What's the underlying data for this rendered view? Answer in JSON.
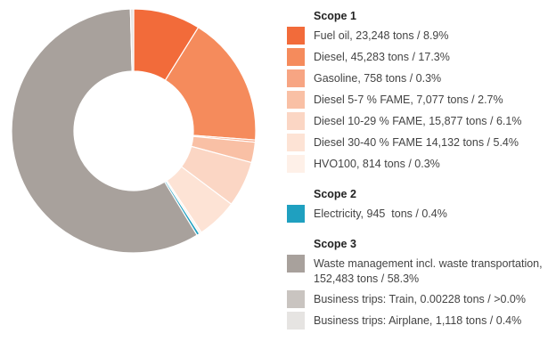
{
  "chart_data": {
    "type": "donut",
    "groups": [
      {
        "name": "Scope 1",
        "categories": [
          "Fuel oil, 23,248 tons / 8.9%",
          "Diesel, 45,283 tons / 17.3%",
          "Gasoline, 758 tons / 0.3%",
          "Diesel 5-7 % FAME, 7,077 tons / 2.7%",
          "Diesel 10-29 % FAME, 15,877 tons / 6.1%",
          "Diesel 30-40 % FAME 14,132 tons / 5.4%",
          "HVO100, 814 tons / 0.3%"
        ],
        "values": [
          23248,
          45283,
          758,
          7077,
          15877,
          14132,
          814
        ],
        "colors": [
          "#f26b3a",
          "#f58b5c",
          "#f7a583",
          "#f9c0a5",
          "#fbd6c4",
          "#fde3d5",
          "#fef0e8"
        ]
      },
      {
        "name": "Scope 2",
        "categories": [
          "Electricity, 945  tons / 0.4%"
        ],
        "values": [
          945
        ],
        "colors": [
          "#1fa0c0"
        ]
      },
      {
        "name": "Scope 3",
        "categories": [
          "Waste management incl. waste transportation, 152,483 tons / 58.3%",
          "Business trips: Train, 0.00228 tons / >0.0%",
          "Business trips: Airplane, 1,118 tons / 0.4%"
        ],
        "values": [
          152483,
          0.00228,
          1118
        ],
        "colors": [
          "#a8a19c",
          "#c9c4c0",
          "#e6e4e2"
        ]
      }
    ]
  }
}
